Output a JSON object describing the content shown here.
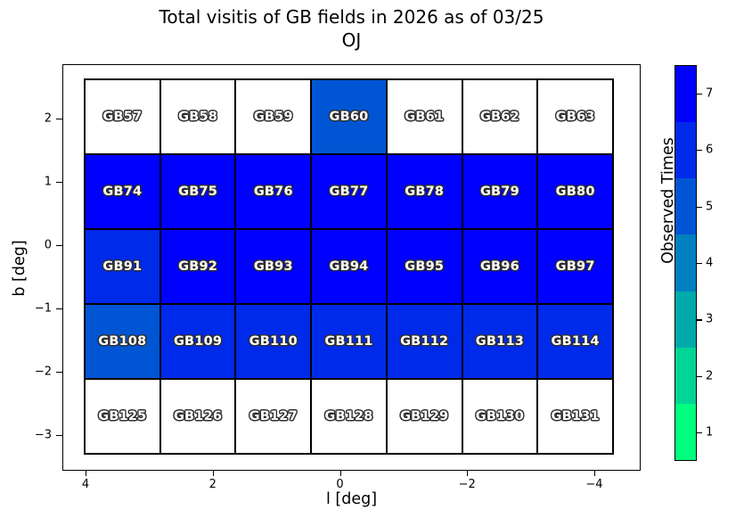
{
  "figure": {
    "title_line1": "Total visitis of GB fields in 2026 as of 03/25",
    "title_line2": "OJ",
    "xlabel": "l [deg]",
    "ylabel": "b [deg]",
    "colorbar_label": "Observed Times"
  },
  "chart_data": {
    "type": "heatmap",
    "title": "Total visitis of GB fields in 2026 as of 03/25\nOJ",
    "xlabel": "l [deg]",
    "ylabel": "b [deg]",
    "x_tick_labels": [
      "4",
      "2",
      "0",
      "−2",
      "−4"
    ],
    "y_tick_labels": [
      "2",
      "1",
      "0",
      "−1",
      "−2",
      "−3"
    ],
    "x_axis_reversed": true,
    "xlim": [
      4.4,
      -4.7
    ],
    "ylim": [
      -3.6,
      2.6
    ],
    "grid_on": false,
    "colorbar": {
      "label": "Observed Times",
      "tick_labels": [
        "1",
        "2",
        "3",
        "4",
        "5",
        "6",
        "7"
      ],
      "colormap": "winter_r",
      "discrete_levels": 7,
      "level_colors": [
        "#00FF80",
        "#00D595",
        "#00AAAA",
        "#0080BF",
        "#0055D5",
        "#002AEA",
        "#0000FF"
      ]
    },
    "unobserved_color": "#FFFFFF",
    "cell_edge_color": "#000000",
    "rows": [
      {
        "b_row": 1,
        "fields": [
          "GB57",
          "GB58",
          "GB59",
          "GB60",
          "GB61",
          "GB62",
          "GB63"
        ],
        "observed": [
          0,
          0,
          0,
          5,
          0,
          0,
          0
        ]
      },
      {
        "b_row": 2,
        "fields": [
          "GB74",
          "GB75",
          "GB76",
          "GB77",
          "GB78",
          "GB79",
          "GB80"
        ],
        "observed": [
          7,
          7,
          7,
          7,
          7,
          7,
          7
        ]
      },
      {
        "b_row": 3,
        "fields": [
          "GB91",
          "GB92",
          "GB93",
          "GB94",
          "GB95",
          "GB96",
          "GB97"
        ],
        "observed": [
          6,
          7,
          7,
          7,
          7,
          7,
          7
        ]
      },
      {
        "b_row": 4,
        "fields": [
          "GB108",
          "GB109",
          "GB110",
          "GB111",
          "GB112",
          "GB113",
          "GB114"
        ],
        "observed": [
          5,
          6,
          6,
          6,
          6,
          6,
          6
        ]
      },
      {
        "b_row": 5,
        "fields": [
          "GB125",
          "GB126",
          "GB127",
          "GB128",
          "GB129",
          "GB130",
          "GB131"
        ],
        "observed": [
          0,
          0,
          0,
          0,
          0,
          0,
          0
        ]
      }
    ]
  }
}
